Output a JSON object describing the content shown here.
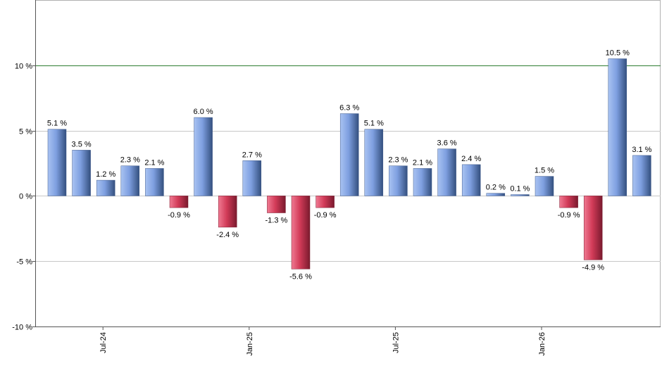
{
  "chart_data": {
    "type": "bar",
    "title": "",
    "xlabel": "",
    "ylabel": "",
    "ylim": [
      -10,
      15
    ],
    "y_ticks": [
      -10,
      -5,
      0,
      5,
      10
    ],
    "y_tick_labels": [
      "-10 %",
      "-5 %",
      "0 %",
      "5 %",
      "10 %"
    ],
    "x_ticks": [
      {
        "index": 2,
        "label": "Jul-24"
      },
      {
        "index": 8,
        "label": "Jan-25"
      },
      {
        "index": 14,
        "label": "Jul-25"
      },
      {
        "index": 20,
        "label": "Jan-26"
      }
    ],
    "reference_line": {
      "value": 10,
      "color": "#2e7d32"
    },
    "grid": true,
    "legend": "none",
    "colors": {
      "positive": "#6f8fd6",
      "negative": "#c8324e"
    },
    "values": [
      5.1,
      3.5,
      1.2,
      2.3,
      2.1,
      -0.9,
      6.0,
      -2.4,
      2.7,
      -1.3,
      -5.6,
      -0.9,
      6.3,
      5.1,
      2.3,
      2.1,
      3.6,
      2.4,
      0.2,
      0.1,
      1.5,
      -0.9,
      -4.9,
      10.5,
      3.1
    ],
    "data_labels": [
      "5.1 %",
      "3.5 %",
      "1.2 %",
      "2.3 %",
      "2.1 %",
      "-0.9 %",
      "6.0 %",
      "-2.4 %",
      "2.7 %",
      "-1.3 %",
      "-5.6 %",
      "-0.9 %",
      "6.3 %",
      "5.1 %",
      "2.3 %",
      "2.1 %",
      "3.6 %",
      "2.4 %",
      "0.2 %",
      "0.1 %",
      "1.5 %",
      "-0.9 %",
      "-4.9 %",
      "10.5 %",
      "3.1 %"
    ]
  }
}
